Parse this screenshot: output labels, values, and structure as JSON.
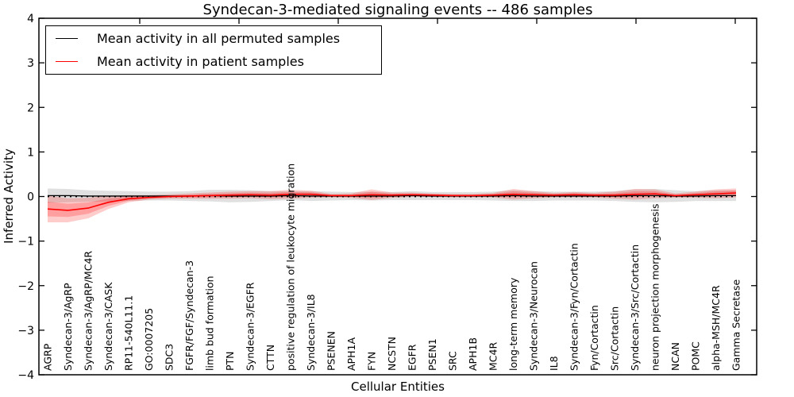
{
  "title": "Syndecan-3-mediated signaling events -- 486 samples",
  "legend": {
    "items": [
      {
        "label": "Mean activity in all permuted samples",
        "color": "#000000"
      },
      {
        "label": "Mean activity in patient samples",
        "color": "#ff0000"
      }
    ]
  },
  "axes": {
    "ylabel": "Inferred Activity",
    "xlabel": "Cellular Entities"
  },
  "colors": {
    "patient_line": "#ff0000",
    "permuted_line": "#000000",
    "patient_band": "#ff0000",
    "permuted_band": "#999999",
    "frame": "#000000"
  },
  "chart_data": {
    "type": "line",
    "title": "Syndecan-3-mediated signaling events -- 486 samples",
    "xlabel": "Cellular Entities",
    "ylabel": "Inferred Activity",
    "ylim": [
      -4,
      4
    ],
    "yticks": [
      -4,
      -3,
      -2,
      -1,
      0,
      1,
      2,
      3,
      4
    ],
    "grid": false,
    "legend_position": "upper left",
    "zero_line": {
      "y": 0,
      "style": "dotted",
      "color": "#000000"
    },
    "categories": [
      "AGRP",
      "Syndecan-3/AgRP",
      "Syndecan-3/AgRP/MC4R",
      "Syndecan-3/CASK",
      "RP11-540L11.1",
      "GO:0007205",
      "SDC3",
      "FGFR/FGF/Syndecan-3",
      "limb bud formation",
      "PTN",
      "Syndecan-3/EGFR",
      "CTTN",
      "positive regulation of leukocyte migration",
      "Syndecan-3/IL8",
      "PSENEN",
      "APH1A",
      "FYN",
      "NCSTN",
      "EGFR",
      "PSEN1",
      "SRC",
      "APH1B",
      "MC4R",
      "long-term memory",
      "Syndecan-3/Neurocan",
      "IL8",
      "Syndecan-3/Fyn/Cortactin",
      "Fyn/Cortactin",
      "Src/Cortactin",
      "Syndecan-3/Src/Cortactin",
      "neuron projection morphogenesis",
      "NCAN",
      "POMC",
      "alpha-MSH/MC4R",
      "Gamma Secretase"
    ],
    "series": [
      {
        "name": "Mean activity in all permuted samples",
        "color": "#000000",
        "values": [
          0.02,
          0.02,
          0.01,
          0.01,
          0.01,
          0.01,
          0.01,
          0.01,
          0.02,
          0.01,
          0.01,
          0.01,
          0.02,
          0.01,
          0.01,
          0.01,
          0.01,
          0.01,
          0.02,
          0.01,
          0.01,
          0.01,
          0.01,
          0.02,
          0.01,
          0.01,
          0.01,
          0.01,
          0.01,
          0.02,
          0.02,
          0.01,
          0.01,
          0.02,
          0.02
        ],
        "band_halfwidth": [
          0.16,
          0.15,
          0.13,
          0.12,
          0.11,
          0.1,
          0.1,
          0.11,
          0.13,
          0.14,
          0.13,
          0.11,
          0.1,
          0.11,
          0.1,
          0.09,
          0.1,
          0.09,
          0.1,
          0.09,
          0.09,
          0.09,
          0.1,
          0.12,
          0.11,
          0.1,
          0.1,
          0.1,
          0.11,
          0.14,
          0.15,
          0.13,
          0.11,
          0.12,
          0.12
        ]
      },
      {
        "name": "Mean activity in patient samples",
        "color": "#ff0000",
        "values": [
          -0.28,
          -0.31,
          -0.26,
          -0.13,
          -0.05,
          -0.02,
          0.0,
          0.01,
          0.02,
          0.03,
          0.04,
          0.03,
          0.05,
          0.05,
          0.02,
          0.02,
          0.04,
          0.03,
          0.04,
          0.03,
          0.02,
          0.02,
          0.03,
          0.05,
          0.04,
          0.03,
          0.04,
          0.03,
          0.03,
          0.05,
          0.06,
          0.02,
          0.04,
          0.06,
          0.08
        ],
        "band_halfwidth": [
          0.3,
          0.27,
          0.23,
          0.15,
          0.08,
          0.05,
          0.05,
          0.06,
          0.07,
          0.08,
          0.08,
          0.09,
          0.1,
          0.08,
          0.04,
          0.05,
          0.12,
          0.06,
          0.05,
          0.04,
          0.04,
          0.04,
          0.05,
          0.12,
          0.08,
          0.05,
          0.06,
          0.05,
          0.08,
          0.12,
          0.1,
          0.05,
          0.07,
          0.1,
          0.1
        ]
      }
    ]
  },
  "layout_ticks": {
    "top_tick_xs": [
      176,
      301,
      426,
      551,
      676,
      801,
      926
    ]
  }
}
